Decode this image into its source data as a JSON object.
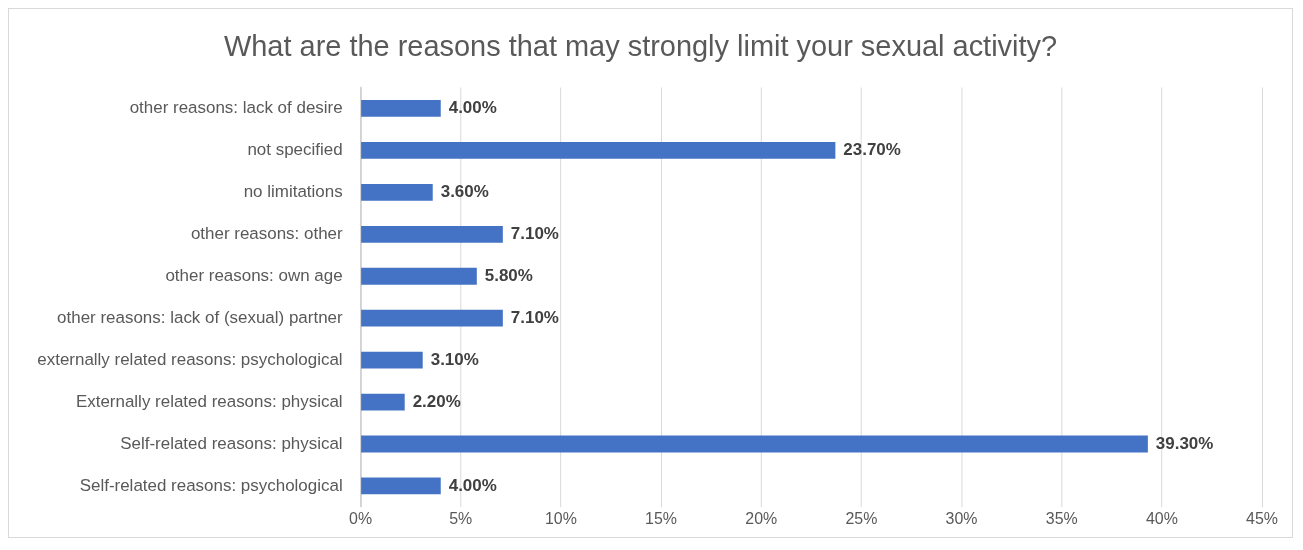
{
  "chart_data": {
    "type": "bar",
    "orientation": "horizontal",
    "title": "What are the reasons that may strongly limit your sexual activity?",
    "categories": [
      "other reasons: lack of desire",
      "not specified",
      "no limitations",
      "other reasons: other",
      "other reasons: own age",
      "other reasons: lack of (sexual) partner",
      "externally related reasons: psychological",
      "Externally related reasons: physical",
      "Self-related reasons: physical",
      "Self-related reasons: psychological"
    ],
    "values": [
      4.0,
      23.7,
      3.6,
      7.1,
      5.8,
      7.1,
      3.1,
      2.2,
      39.3,
      4.0
    ],
    "value_labels": [
      "4.00%",
      "23.70%",
      "3.60%",
      "7.10%",
      "5.80%",
      "7.10%",
      "3.10%",
      "2.20%",
      "39.30%",
      "4.00%"
    ],
    "color": "#4472c4",
    "xlim": [
      0,
      45
    ],
    "xticks": [
      {
        "value": 0,
        "label": "0%"
      },
      {
        "value": 5,
        "label": "5%"
      },
      {
        "value": 10,
        "label": "10%"
      },
      {
        "value": 15,
        "label": "15%"
      },
      {
        "value": 20,
        "label": "20%"
      },
      {
        "value": 25,
        "label": "25%"
      },
      {
        "value": 30,
        "label": "30%"
      },
      {
        "value": 35,
        "label": "35%"
      },
      {
        "value": 40,
        "label": "40%"
      },
      {
        "value": 45,
        "label": "45%"
      }
    ],
    "grid": "x"
  }
}
